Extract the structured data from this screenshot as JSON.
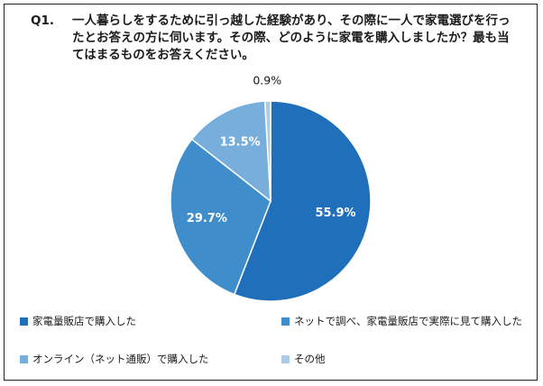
{
  "title": {
    "prefix": "Q1.",
    "text": "一人暮らしをするために引っ越した経験があり、その際に一人で家電選びを行ったとお答えの方に伺います。その際、どのように家電を購入しましたか？最も当てはまるものをお答えください。"
  },
  "chart_data": {
    "type": "pie",
    "title": "",
    "labels": [
      "家電量販店で購入した",
      "ネットで調べ、家電量販店で実際に見て購入した",
      "オンライン（ネット通販）で購入した",
      "その他"
    ],
    "values": [
      55.9,
      29.7,
      13.5,
      0.9
    ],
    "value_labels": [
      "55.9%",
      "29.7%",
      "13.5%",
      "0.9%"
    ],
    "colors": [
      "#1f6fba",
      "#3f8ecb",
      "#78aedb",
      "#aecbe6"
    ],
    "legend_position": "bottom"
  },
  "legend": {
    "items": [
      {
        "label": "家電量販店で購入した",
        "color": "#1f6fba"
      },
      {
        "label": "ネットで調べ、家電量販店で実際に見て購入した",
        "color": "#3f8ecb"
      },
      {
        "label": "オンライン（ネット通販）で購入した",
        "color": "#78aedb"
      },
      {
        "label": "その他",
        "color": "#aecbe6"
      }
    ]
  }
}
